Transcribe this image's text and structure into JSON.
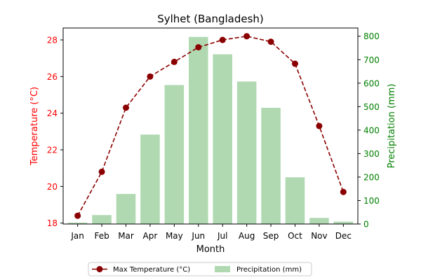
{
  "chart_data": {
    "type": "bar+line",
    "title": "Sylhet (Bangladesh)",
    "xlabel": "Month",
    "ylabel_left": "Temperature (°C)",
    "ylabel_right": "Precipitation (mm)",
    "categories": [
      "Jan",
      "Feb",
      "Mar",
      "Apr",
      "May",
      "Jun",
      "Jul",
      "Aug",
      "Sep",
      "Oct",
      "Nov",
      "Dec"
    ],
    "ylim_left": [
      17.95,
      28.65
    ],
    "ylim_right": [
      0,
      835
    ],
    "yticks_left": [
      18,
      20,
      22,
      24,
      26,
      28
    ],
    "yticks_right": [
      0,
      100,
      200,
      300,
      400,
      500,
      600,
      700,
      800
    ],
    "grid": false,
    "legend_position": "bottom-center",
    "series": [
      {
        "name": "Max Temperature (°C)",
        "kind": "line",
        "axis": "left",
        "values": [
          18.4,
          20.8,
          24.3,
          26.0,
          26.8,
          27.6,
          28.0,
          28.2,
          27.9,
          26.7,
          23.3,
          19.7
        ]
      },
      {
        "name": "Precipitation (mm)",
        "kind": "bar",
        "axis": "right",
        "values": [
          6,
          38,
          128,
          381,
          592,
          797,
          723,
          607,
          495,
          199,
          26,
          10
        ]
      }
    ],
    "colors": {
      "temperature_line": "#8b0000",
      "temperature_axis": "#ff0000",
      "precipitation_bar": "#b0d9b2",
      "precipitation_axis": "#008000",
      "text": "#000000"
    }
  }
}
